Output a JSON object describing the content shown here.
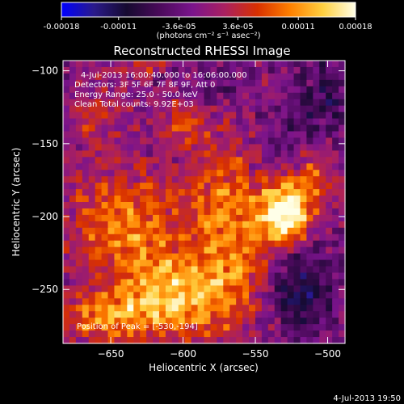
{
  "chart_data": {
    "type": "heatmap",
    "title": "Reconstructed RHESSI Image",
    "xlabel": "Heliocentric X (arcsec)",
    "ylabel": "Heliocentric Y (arcsec)",
    "xlim": [
      -683,
      -488
    ],
    "ylim": [
      -287,
      -93
    ],
    "x_ticks": [
      -650,
      -600,
      -550,
      -500
    ],
    "y_ticks": [
      -100,
      -150,
      -200,
      -250
    ],
    "colorbar": {
      "range": [
        -0.00018,
        0.00018
      ],
      "tick_values": [
        -0.00018,
        -0.00011,
        -3.6e-05,
        3.6e-05,
        0.00011,
        0.00018
      ],
      "tick_labels": [
        "-0.00018",
        "-0.00011",
        "-3.6e-05",
        "3.6e-05",
        "0.00011",
        "0.00018"
      ],
      "unit_label": "(photons cm⁻² s⁻¹ asec⁻²)",
      "colors": [
        "#0000ff",
        "#2a1a8a",
        "#160a30",
        "#4a0a5a",
        "#7a148c",
        "#aa2060",
        "#d83000",
        "#ff8000",
        "#ffd040",
        "#ffffe8"
      ]
    },
    "annotations": [
      "4-Jul-2013 16:00:40.000 to 16:06:00.000",
      "Detectors: 3F 5F 6F 7F 8F 9F, Att 0",
      "Energy Range: 25.0 - 50.0 keV",
      "Clean     Total counts: 9.92E+03"
    ],
    "peak_label": "Position of Peak = [-530,-194]",
    "peak": {
      "x": -530,
      "y": -194
    },
    "sources": [
      {
        "x": -565,
        "y": -200,
        "sx": 22,
        "sy": 45,
        "amp": 0.55
      },
      {
        "x": -528,
        "y": -198,
        "sx": 12,
        "sy": 14,
        "amp": 1.05
      },
      {
        "x": -640,
        "y": -205,
        "sx": 30,
        "sy": 28,
        "amp": 0.55
      },
      {
        "x": -605,
        "y": -255,
        "sx": 30,
        "sy": 20,
        "amp": 0.7
      },
      {
        "x": -655,
        "y": -270,
        "sx": 22,
        "sy": 12,
        "amp": 0.5
      },
      {
        "x": -600,
        "y": -135,
        "sx": 12,
        "sy": 10,
        "amp": 0.35
      },
      {
        "x": -628,
        "y": -95,
        "sx": 10,
        "sy": 6,
        "amp": 0.35
      },
      {
        "x": -510,
        "y": -172,
        "sx": 10,
        "sy": 12,
        "amp": 0.45
      },
      {
        "x": -660,
        "y": -130,
        "sx": 16,
        "sy": 16,
        "amp": 0.25
      },
      {
        "x": -520,
        "y": -250,
        "sx": 14,
        "sy": 20,
        "amp": -0.5
      },
      {
        "x": -540,
        "y": -150,
        "sx": 18,
        "sy": 16,
        "amp": -0.25
      },
      {
        "x": -500,
        "y": -120,
        "sx": 14,
        "sy": 18,
        "amp": -0.3
      },
      {
        "x": -575,
        "y": -110,
        "sx": 14,
        "sy": 10,
        "amp": -0.2
      }
    ],
    "grid": false,
    "legend": "colorbar-top"
  },
  "footer_timestamp": "4-Jul-2013 19:50"
}
